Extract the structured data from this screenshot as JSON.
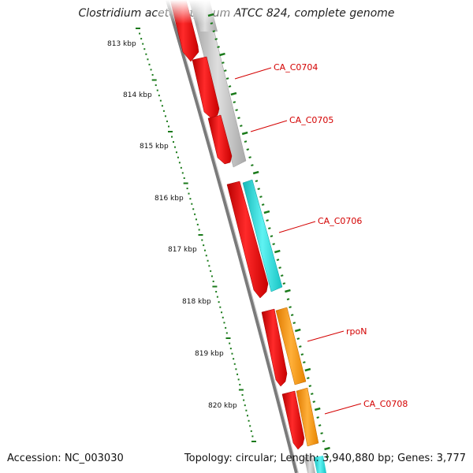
{
  "title": "Clostridium acetobutylicum ATCC 824, complete genome",
  "accession": "Accession: NC_003030",
  "summary": "Topology: circular; Length: 3,940,880 bp; Genes: 3,777",
  "ticks": [
    {
      "label": "813 kbp"
    },
    {
      "label": "814 kbp"
    },
    {
      "label": "815 kbp"
    },
    {
      "label": "816 kbp"
    },
    {
      "label": "817 kbp"
    },
    {
      "label": "818 kbp"
    },
    {
      "label": "819 kbp"
    },
    {
      "label": "820 kbp"
    }
  ],
  "genes": [
    {
      "name": "CA_C0704"
    },
    {
      "name": "CA_C0705"
    },
    {
      "name": "CA_C0706"
    },
    {
      "name": "rpoN"
    },
    {
      "name": "CA_C0708"
    }
  ],
  "colors": {
    "cds": "#ff0000",
    "grey_feature": "#bbbbbb",
    "cyan_feature": "#22dddd",
    "orange_feature": "#ff9900",
    "backbone": "#888888",
    "tick": "#1a7a1a",
    "label": "#d40000"
  }
}
